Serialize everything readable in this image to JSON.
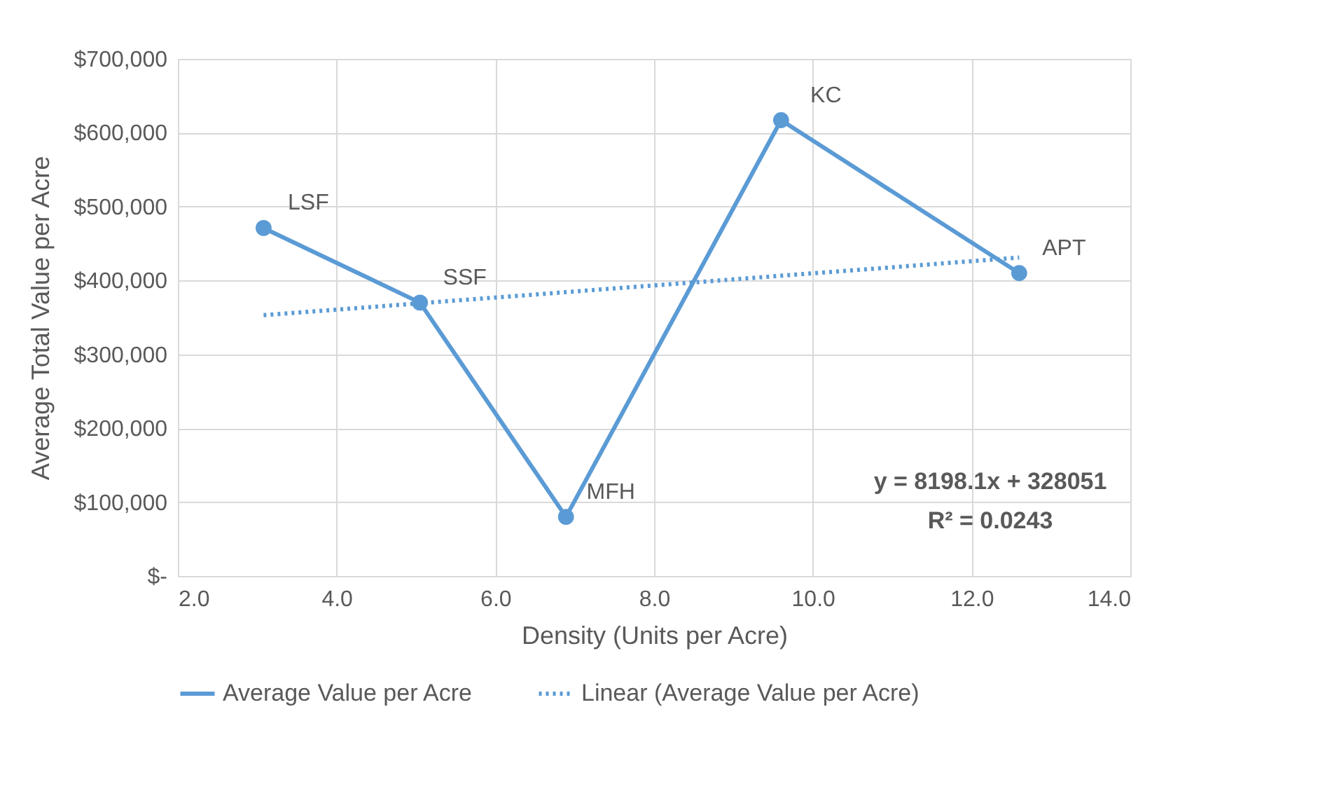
{
  "chart_data": {
    "type": "line",
    "xlabel": "Density (Units per Acre)",
    "ylabel": "Average Total Value per Acre",
    "xlim": [
      2,
      14
    ],
    "xticks": [
      {
        "value": 2,
        "label": "2.0"
      },
      {
        "value": 4,
        "label": "4.0"
      },
      {
        "value": 6,
        "label": "6.0"
      },
      {
        "value": 8,
        "label": "8.0"
      },
      {
        "value": 10,
        "label": "10.0"
      },
      {
        "value": 12,
        "label": "12.0"
      },
      {
        "value": 14,
        "label": "14.0"
      }
    ],
    "ylim": [
      0,
      700000
    ],
    "yticks": [
      {
        "value": 0,
        "label": "$-"
      },
      {
        "value": 100000,
        "label": "$100,000"
      },
      {
        "value": 200000,
        "label": "$200,000"
      },
      {
        "value": 300000,
        "label": "$300,000"
      },
      {
        "value": 400000,
        "label": "$400,000"
      },
      {
        "value": 500000,
        "label": "$500,000"
      },
      {
        "value": 600000,
        "label": "$600,000"
      },
      {
        "value": 700000,
        "label": "$700,000"
      }
    ],
    "grid": true,
    "legend": "bottom",
    "series": [
      {
        "name": "Average Value per Acre",
        "color": "#5b9bd5",
        "marker": "circle",
        "line_style": "solid",
        "x": [
          3.08,
          5.05,
          6.89,
          9.6,
          12.6
        ],
        "values": [
          471000,
          370000,
          80000,
          617000,
          410000
        ]
      },
      {
        "name": "Linear (Average Value per Acre)",
        "color": "#5b9bd5",
        "marker": "none",
        "line_style": "dotted",
        "x": [
          3.08,
          12.6
        ],
        "values": [
          353000,
          431000
        ]
      }
    ],
    "annotations": [
      {
        "text": "LSF",
        "x": 3.08,
        "y": 471000
      },
      {
        "text": "SSF",
        "x": 5.05,
        "y": 370000
      },
      {
        "text": "MFH",
        "x": 6.89,
        "y": 80000
      },
      {
        "text": "KC",
        "x": 9.6,
        "y": 617000
      },
      {
        "text": "APT",
        "x": 12.6,
        "y": 410000
      },
      "y = 8198.1x + 328051",
      "R² = 0.0243"
    ]
  }
}
